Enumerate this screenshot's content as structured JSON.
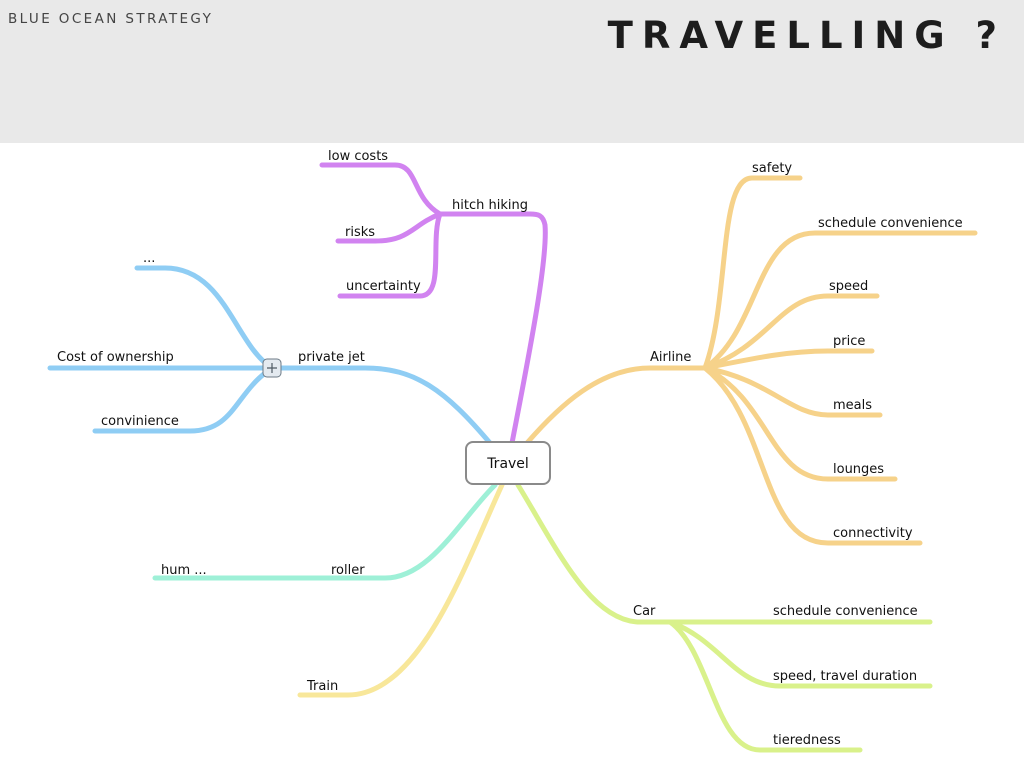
{
  "header": {
    "kicker": "BLUE OCEAN STRATEGY",
    "title": "TRAVELLING ?"
  },
  "mindmap": {
    "root": "Travel",
    "branches": [
      {
        "label": "hitch hiking",
        "color": "#d183f0",
        "children": [
          "low costs",
          "risks",
          "uncertainty"
        ]
      },
      {
        "label": "private jet",
        "color": "#8fcdf4",
        "children": [
          "...",
          "Cost of ownership",
          "convinience"
        ]
      },
      {
        "label": "roller",
        "color": "#9ef0d7",
        "children": [
          "hum ..."
        ]
      },
      {
        "label": "Train",
        "color": "#f8e79a",
        "children": []
      },
      {
        "label": "Airline",
        "color": "#f6d28a",
        "children": [
          "safety",
          "schedule convenience",
          "speed",
          "price",
          "meals",
          "lounges",
          "connectivity"
        ]
      },
      {
        "label": "Car",
        "color": "#d9f18b",
        "children": [
          "schedule convenience",
          "speed, travel duration",
          "tieredness"
        ]
      }
    ]
  }
}
